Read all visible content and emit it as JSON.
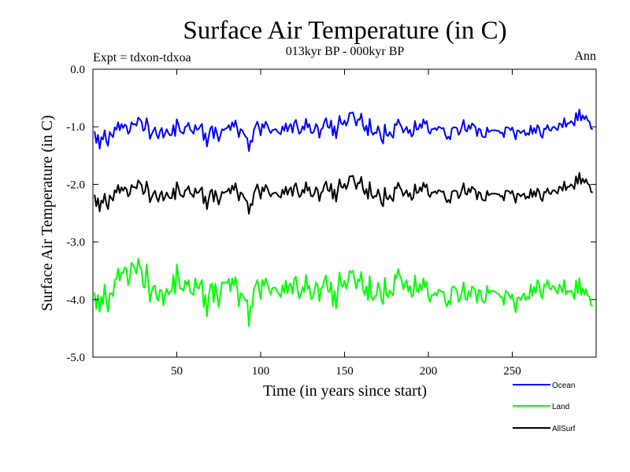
{
  "chart_data": {
    "type": "line",
    "title": "Surface Air Temperature (in C)",
    "subtitle": "013kyr BP - 000kyr BP",
    "top_left_label": "Expt = tdxon-tdxoa",
    "top_right_label": "Ann",
    "xlabel": "Time (in years since start)",
    "ylabel": "Surface Air Temperature (in C)",
    "xlim": [
      0,
      300
    ],
    "ylim": [
      -5.0,
      0.0
    ],
    "x_ticks": [
      50,
      100,
      150,
      200,
      250
    ],
    "x_tick_labels": [
      "50",
      "100",
      "150",
      "200",
      "250"
    ],
    "y_ticks": [
      0.0,
      -1.0,
      -2.0,
      -3.0,
      -4.0,
      -5.0
    ],
    "y_tick_labels": [
      "0.0",
      "-1.0",
      "-2.0",
      "-3.0",
      "-4.0",
      "-5.0"
    ],
    "legend_placement": "below-right",
    "x_start": 1,
    "x_step": 1,
    "series": [
      {
        "name": "Ocean",
        "color": "#0000ff",
        "values": [
          -1.08,
          -1.28,
          -1.14,
          -1.38,
          -1.18,
          -1.22,
          -1.06,
          -1.25,
          -1.33,
          -1.09,
          -1.14,
          -1.18,
          -1.01,
          -1.05,
          -0.92,
          -1.06,
          -0.95,
          -1.02,
          -0.96,
          -0.99,
          -1.12,
          -1.08,
          -0.92,
          -0.96,
          -0.95,
          -0.98,
          -0.84,
          -0.87,
          -0.91,
          -1.07,
          -1.04,
          -0.85,
          -0.98,
          -1.21,
          -1.13,
          -1.07,
          -1.01,
          -1.14,
          -1.2,
          -1.08,
          -1.02,
          -1.19,
          -1.12,
          -1.04,
          -1.11,
          -1.15,
          -1.14,
          -0.97,
          -1.16,
          -0.87,
          -0.96,
          -1.08,
          -1.1,
          -1.12,
          -1.0,
          -0.99,
          -0.93,
          -1.05,
          -1.08,
          -1.12,
          -0.97,
          -1.05,
          -1.04,
          -0.99,
          -0.95,
          -1.23,
          -1.11,
          -1.34,
          -1.17,
          -1.03,
          -0.99,
          -1.2,
          -1.01,
          -1.12,
          -1.25,
          -1.15,
          -1.04,
          -1.06,
          -1.03,
          -1.02,
          -0.97,
          -1.06,
          -0.92,
          -1.0,
          -0.89,
          -1.02,
          -1.18,
          -1.04,
          -1.06,
          -1.12,
          -1.17,
          -1.2,
          -1.42,
          -1.24,
          -1.26,
          -1.05,
          -0.98,
          -0.91,
          -1.01,
          -1.15,
          -0.95,
          -1.02,
          -0.91,
          -0.97,
          -1.05,
          -1.11,
          -1.06,
          -1.05,
          -1.04,
          -1.08,
          -1.11,
          -1.13,
          -0.99,
          -1.07,
          -0.94,
          -1.08,
          -0.99,
          -0.95,
          -1.1,
          -0.93,
          -0.88,
          -1.01,
          -1.12,
          -1.09,
          -0.99,
          -1.05,
          -0.86,
          -1.01,
          -0.95,
          -1.1,
          -1.11,
          -1.06,
          -0.95,
          -1.0,
          -1.19,
          -1.05,
          -1.02,
          -0.91,
          -0.85,
          -1.0,
          -1.02,
          -0.89,
          -1.15,
          -0.99,
          -1.2,
          -1.01,
          -0.81,
          -0.94,
          -0.96,
          -0.89,
          -0.98,
          -0.9,
          -0.76,
          -0.76,
          -0.75,
          -0.86,
          -0.98,
          -0.87,
          -0.88,
          -0.77,
          -0.98,
          -1.07,
          -0.98,
          -1.15,
          -0.86,
          -1.08,
          -1.14,
          -1.1,
          -1.11,
          -0.99,
          -1.09,
          -1.23,
          -1.29,
          -0.96,
          -1.14,
          -1.16,
          -1.09,
          -1.15,
          -1.19,
          -0.95,
          -0.97,
          -0.87,
          -0.95,
          -1.0,
          -1.1,
          -1.05,
          -1.0,
          -1.11,
          -1.05,
          -1.17,
          -1.13,
          -0.9,
          -1.05,
          -1.04,
          -0.95,
          -1.02,
          -0.87,
          -0.95,
          -0.9,
          -1.08,
          -1.12,
          -1.04,
          -1.04,
          -1.02,
          -1.06,
          -1.0,
          -1.01,
          -1.03,
          -1.02,
          -1.13,
          -1.21,
          -1.17,
          -1.22,
          -1.03,
          -1.01,
          -1.01,
          -1.02,
          -1.14,
          -1.09,
          -0.99,
          -0.88,
          -1.06,
          -1.08,
          -0.97,
          -1.04,
          -0.94,
          -0.97,
          -1.0,
          -1.16,
          -1.03,
          -1.05,
          -1.16,
          -1.18,
          -1.18,
          -1.01,
          -1.09,
          -1.07,
          -1.06,
          -1.06,
          -1.06,
          -1.07,
          -1.07,
          -1.11,
          -1.1,
          -1.18,
          -1.01,
          -1.01,
          -1.02,
          -1.06,
          -1.01,
          -1.11,
          -1.22,
          -1.06,
          -1.07,
          -1.11,
          -1.08,
          -1.06,
          -1.15,
          -1.11,
          -1.14,
          -0.98,
          -1.12,
          -1.02,
          -1.11,
          -0.97,
          -1.02,
          -1.15,
          -1.19,
          -1.03,
          -1.04,
          -0.97,
          -1.05,
          -1.07,
          -1.01,
          -1.0,
          -1.03,
          -1.06,
          -0.94,
          -0.95,
          -1.01,
          -0.85,
          -1.0,
          -0.94,
          -0.94,
          -0.9,
          -0.93,
          -0.98,
          -0.76,
          -0.89,
          -0.7,
          -0.89,
          -0.8,
          -0.87,
          -0.81,
          -0.89,
          -0.91,
          -1.03,
          -1.04
        ]
      },
      {
        "name": "Land",
        "color": "#00ff00",
        "values": [
          -3.88,
          -4.16,
          -3.92,
          -4.21,
          -3.95,
          -4.08,
          -3.74,
          -4.03,
          -4.21,
          -3.9,
          -3.89,
          -3.94,
          -3.66,
          -3.64,
          -3.46,
          -3.67,
          -3.53,
          -3.54,
          -3.44,
          -3.46,
          -3.75,
          -3.64,
          -3.36,
          -3.41,
          -3.46,
          -3.55,
          -3.29,
          -3.43,
          -3.48,
          -3.78,
          -3.79,
          -3.39,
          -3.71,
          -4.04,
          -3.87,
          -3.77,
          -3.76,
          -3.97,
          -4.02,
          -3.83,
          -3.84,
          -4.1,
          -3.92,
          -3.81,
          -3.91,
          -3.86,
          -3.85,
          -3.57,
          -3.9,
          -3.39,
          -3.63,
          -3.81,
          -3.81,
          -3.85,
          -3.67,
          -3.74,
          -3.66,
          -3.87,
          -3.89,
          -3.92,
          -3.63,
          -3.78,
          -3.81,
          -3.72,
          -3.66,
          -4.13,
          -3.92,
          -4.29,
          -3.96,
          -3.75,
          -3.72,
          -4.05,
          -3.72,
          -3.91,
          -4.13,
          -3.9,
          -3.7,
          -3.71,
          -3.7,
          -3.71,
          -3.64,
          -3.86,
          -3.63,
          -3.76,
          -3.61,
          -3.79,
          -4.12,
          -3.89,
          -3.91,
          -3.97,
          -4.02,
          -4.01,
          -4.46,
          -4.12,
          -4.13,
          -3.81,
          -3.75,
          -3.66,
          -3.81,
          -3.99,
          -3.66,
          -3.76,
          -3.63,
          -3.72,
          -3.83,
          -3.91,
          -3.8,
          -3.79,
          -3.8,
          -3.87,
          -3.91,
          -3.96,
          -3.75,
          -3.88,
          -3.67,
          -3.89,
          -3.75,
          -3.72,
          -3.9,
          -3.64,
          -3.6,
          -3.83,
          -3.98,
          -3.92,
          -3.78,
          -3.87,
          -3.57,
          -3.81,
          -3.76,
          -3.99,
          -3.97,
          -3.87,
          -3.7,
          -3.76,
          -4.03,
          -3.81,
          -3.78,
          -3.65,
          -3.58,
          -3.84,
          -3.87,
          -3.7,
          -4.11,
          -3.85,
          -4.15,
          -3.85,
          -3.53,
          -3.74,
          -3.78,
          -3.67,
          -3.81,
          -3.7,
          -3.5,
          -3.53,
          -3.5,
          -3.66,
          -3.81,
          -3.65,
          -3.68,
          -3.52,
          -3.82,
          -3.92,
          -3.77,
          -4.01,
          -3.59,
          -3.95,
          -4.01,
          -3.94,
          -3.93,
          -3.71,
          -3.82,
          -4.01,
          -4.08,
          -3.62,
          -3.91,
          -3.96,
          -3.84,
          -3.89,
          -3.93,
          -3.57,
          -3.62,
          -3.47,
          -3.59,
          -3.66,
          -3.82,
          -3.72,
          -3.66,
          -3.86,
          -3.76,
          -3.95,
          -3.92,
          -3.58,
          -3.85,
          -3.87,
          -3.73,
          -3.84,
          -3.63,
          -3.78,
          -3.69,
          -3.96,
          -4.04,
          -3.92,
          -3.92,
          -3.88,
          -3.93,
          -3.83,
          -3.84,
          -3.87,
          -3.86,
          -4.03,
          -4.12,
          -4.02,
          -4.09,
          -3.79,
          -3.77,
          -3.8,
          -3.84,
          -4.04,
          -3.99,
          -3.86,
          -3.7,
          -3.99,
          -4.01,
          -3.85,
          -3.95,
          -3.77,
          -3.8,
          -3.84,
          -4.06,
          -3.83,
          -3.85,
          -4.01,
          -4.05,
          -4.04,
          -3.76,
          -3.89,
          -3.85,
          -3.85,
          -3.85,
          -3.87,
          -3.89,
          -3.9,
          -3.96,
          -3.96,
          -4.09,
          -3.85,
          -3.87,
          -3.91,
          -3.98,
          -3.91,
          -4.06,
          -4.22,
          -3.97,
          -3.96,
          -4.01,
          -3.94,
          -3.89,
          -4.01,
          -3.95,
          -3.99,
          -3.74,
          -3.93,
          -3.78,
          -3.89,
          -3.66,
          -3.73,
          -3.92,
          -3.98,
          -3.74,
          -3.76,
          -3.66,
          -3.79,
          -3.83,
          -3.76,
          -3.78,
          -3.84,
          -3.9,
          -3.74,
          -3.78,
          -3.88,
          -3.66,
          -3.91,
          -3.85,
          -3.87,
          -3.84,
          -3.9,
          -3.99,
          -3.67,
          -3.89,
          -3.63,
          -3.92,
          -3.8,
          -3.91,
          -3.82,
          -3.93,
          -3.95,
          -4.1,
          -4.11
        ]
      },
      {
        "name": "AllSurf",
        "color": "#000000",
        "values": [
          -2.18,
          -2.38,
          -2.24,
          -2.47,
          -2.28,
          -2.32,
          -2.16,
          -2.34,
          -2.43,
          -2.19,
          -2.24,
          -2.28,
          -2.1,
          -2.14,
          -2.01,
          -2.15,
          -2.05,
          -2.11,
          -2.05,
          -2.08,
          -2.21,
          -2.17,
          -2.01,
          -2.05,
          -2.05,
          -2.07,
          -1.93,
          -1.97,
          -2.01,
          -2.17,
          -2.13,
          -1.95,
          -2.08,
          -2.31,
          -2.23,
          -2.16,
          -2.11,
          -2.23,
          -2.3,
          -2.18,
          -2.12,
          -2.28,
          -2.22,
          -2.14,
          -2.21,
          -2.24,
          -2.24,
          -2.07,
          -2.26,
          -1.96,
          -2.06,
          -2.18,
          -2.2,
          -2.22,
          -2.1,
          -2.09,
          -2.03,
          -2.15,
          -2.18,
          -2.22,
          -2.07,
          -2.15,
          -2.14,
          -2.09,
          -2.05,
          -2.33,
          -2.21,
          -2.43,
          -2.26,
          -2.12,
          -2.09,
          -2.3,
          -2.11,
          -2.22,
          -2.35,
          -2.24,
          -2.13,
          -2.15,
          -2.13,
          -2.12,
          -2.07,
          -2.16,
          -2.02,
          -2.1,
          -1.98,
          -2.12,
          -2.28,
          -2.14,
          -2.16,
          -2.22,
          -2.27,
          -2.3,
          -2.51,
          -2.34,
          -2.36,
          -2.15,
          -2.08,
          -2.0,
          -2.11,
          -2.25,
          -2.05,
          -2.12,
          -2.01,
          -2.06,
          -2.15,
          -2.21,
          -2.16,
          -2.15,
          -2.14,
          -2.18,
          -2.21,
          -2.23,
          -2.09,
          -2.17,
          -2.04,
          -2.18,
          -2.09,
          -2.05,
          -2.2,
          -2.03,
          -1.98,
          -2.11,
          -2.22,
          -2.19,
          -2.09,
          -2.15,
          -1.96,
          -2.11,
          -2.05,
          -2.2,
          -2.21,
          -2.16,
          -2.05,
          -2.1,
          -2.29,
          -2.15,
          -2.12,
          -2.01,
          -1.95,
          -2.1,
          -2.12,
          -1.99,
          -2.25,
          -2.09,
          -2.3,
          -2.1,
          -1.91,
          -2.04,
          -2.06,
          -1.99,
          -2.08,
          -2.0,
          -1.86,
          -1.86,
          -1.85,
          -1.96,
          -2.08,
          -1.97,
          -1.98,
          -1.87,
          -2.08,
          -2.17,
          -2.08,
          -2.25,
          -1.96,
          -2.18,
          -2.24,
          -2.2,
          -2.21,
          -2.09,
          -2.19,
          -2.33,
          -2.38,
          -2.06,
          -2.24,
          -2.26,
          -2.19,
          -2.25,
          -2.29,
          -2.05,
          -2.07,
          -1.97,
          -2.05,
          -2.1,
          -2.2,
          -2.15,
          -2.1,
          -2.21,
          -2.15,
          -2.27,
          -2.23,
          -2.0,
          -2.15,
          -2.14,
          -2.05,
          -2.12,
          -1.97,
          -2.05,
          -2.0,
          -2.18,
          -2.22,
          -2.14,
          -2.14,
          -2.12,
          -2.16,
          -2.1,
          -2.11,
          -2.13,
          -2.12,
          -2.23,
          -2.31,
          -2.27,
          -2.32,
          -2.13,
          -2.11,
          -2.11,
          -2.12,
          -2.24,
          -2.19,
          -2.09,
          -1.98,
          -2.16,
          -2.18,
          -2.07,
          -2.14,
          -2.04,
          -2.07,
          -2.1,
          -2.26,
          -2.13,
          -2.15,
          -2.26,
          -2.28,
          -2.28,
          -2.11,
          -2.19,
          -2.17,
          -2.16,
          -2.16,
          -2.16,
          -2.17,
          -2.17,
          -2.21,
          -2.2,
          -2.28,
          -2.11,
          -2.11,
          -2.12,
          -2.16,
          -2.11,
          -2.21,
          -2.32,
          -2.16,
          -2.17,
          -2.21,
          -2.18,
          -2.16,
          -2.25,
          -2.21,
          -2.24,
          -2.08,
          -2.22,
          -2.12,
          -2.21,
          -2.07,
          -2.12,
          -2.25,
          -2.29,
          -2.13,
          -2.14,
          -2.07,
          -2.15,
          -2.17,
          -2.11,
          -2.1,
          -2.13,
          -2.16,
          -2.04,
          -2.05,
          -2.11,
          -1.95,
          -2.1,
          -2.04,
          -2.04,
          -2.0,
          -2.03,
          -2.08,
          -1.86,
          -1.99,
          -1.8,
          -1.99,
          -1.9,
          -1.97,
          -1.91,
          -1.99,
          -2.01,
          -2.13,
          -2.14
        ]
      }
    ]
  }
}
